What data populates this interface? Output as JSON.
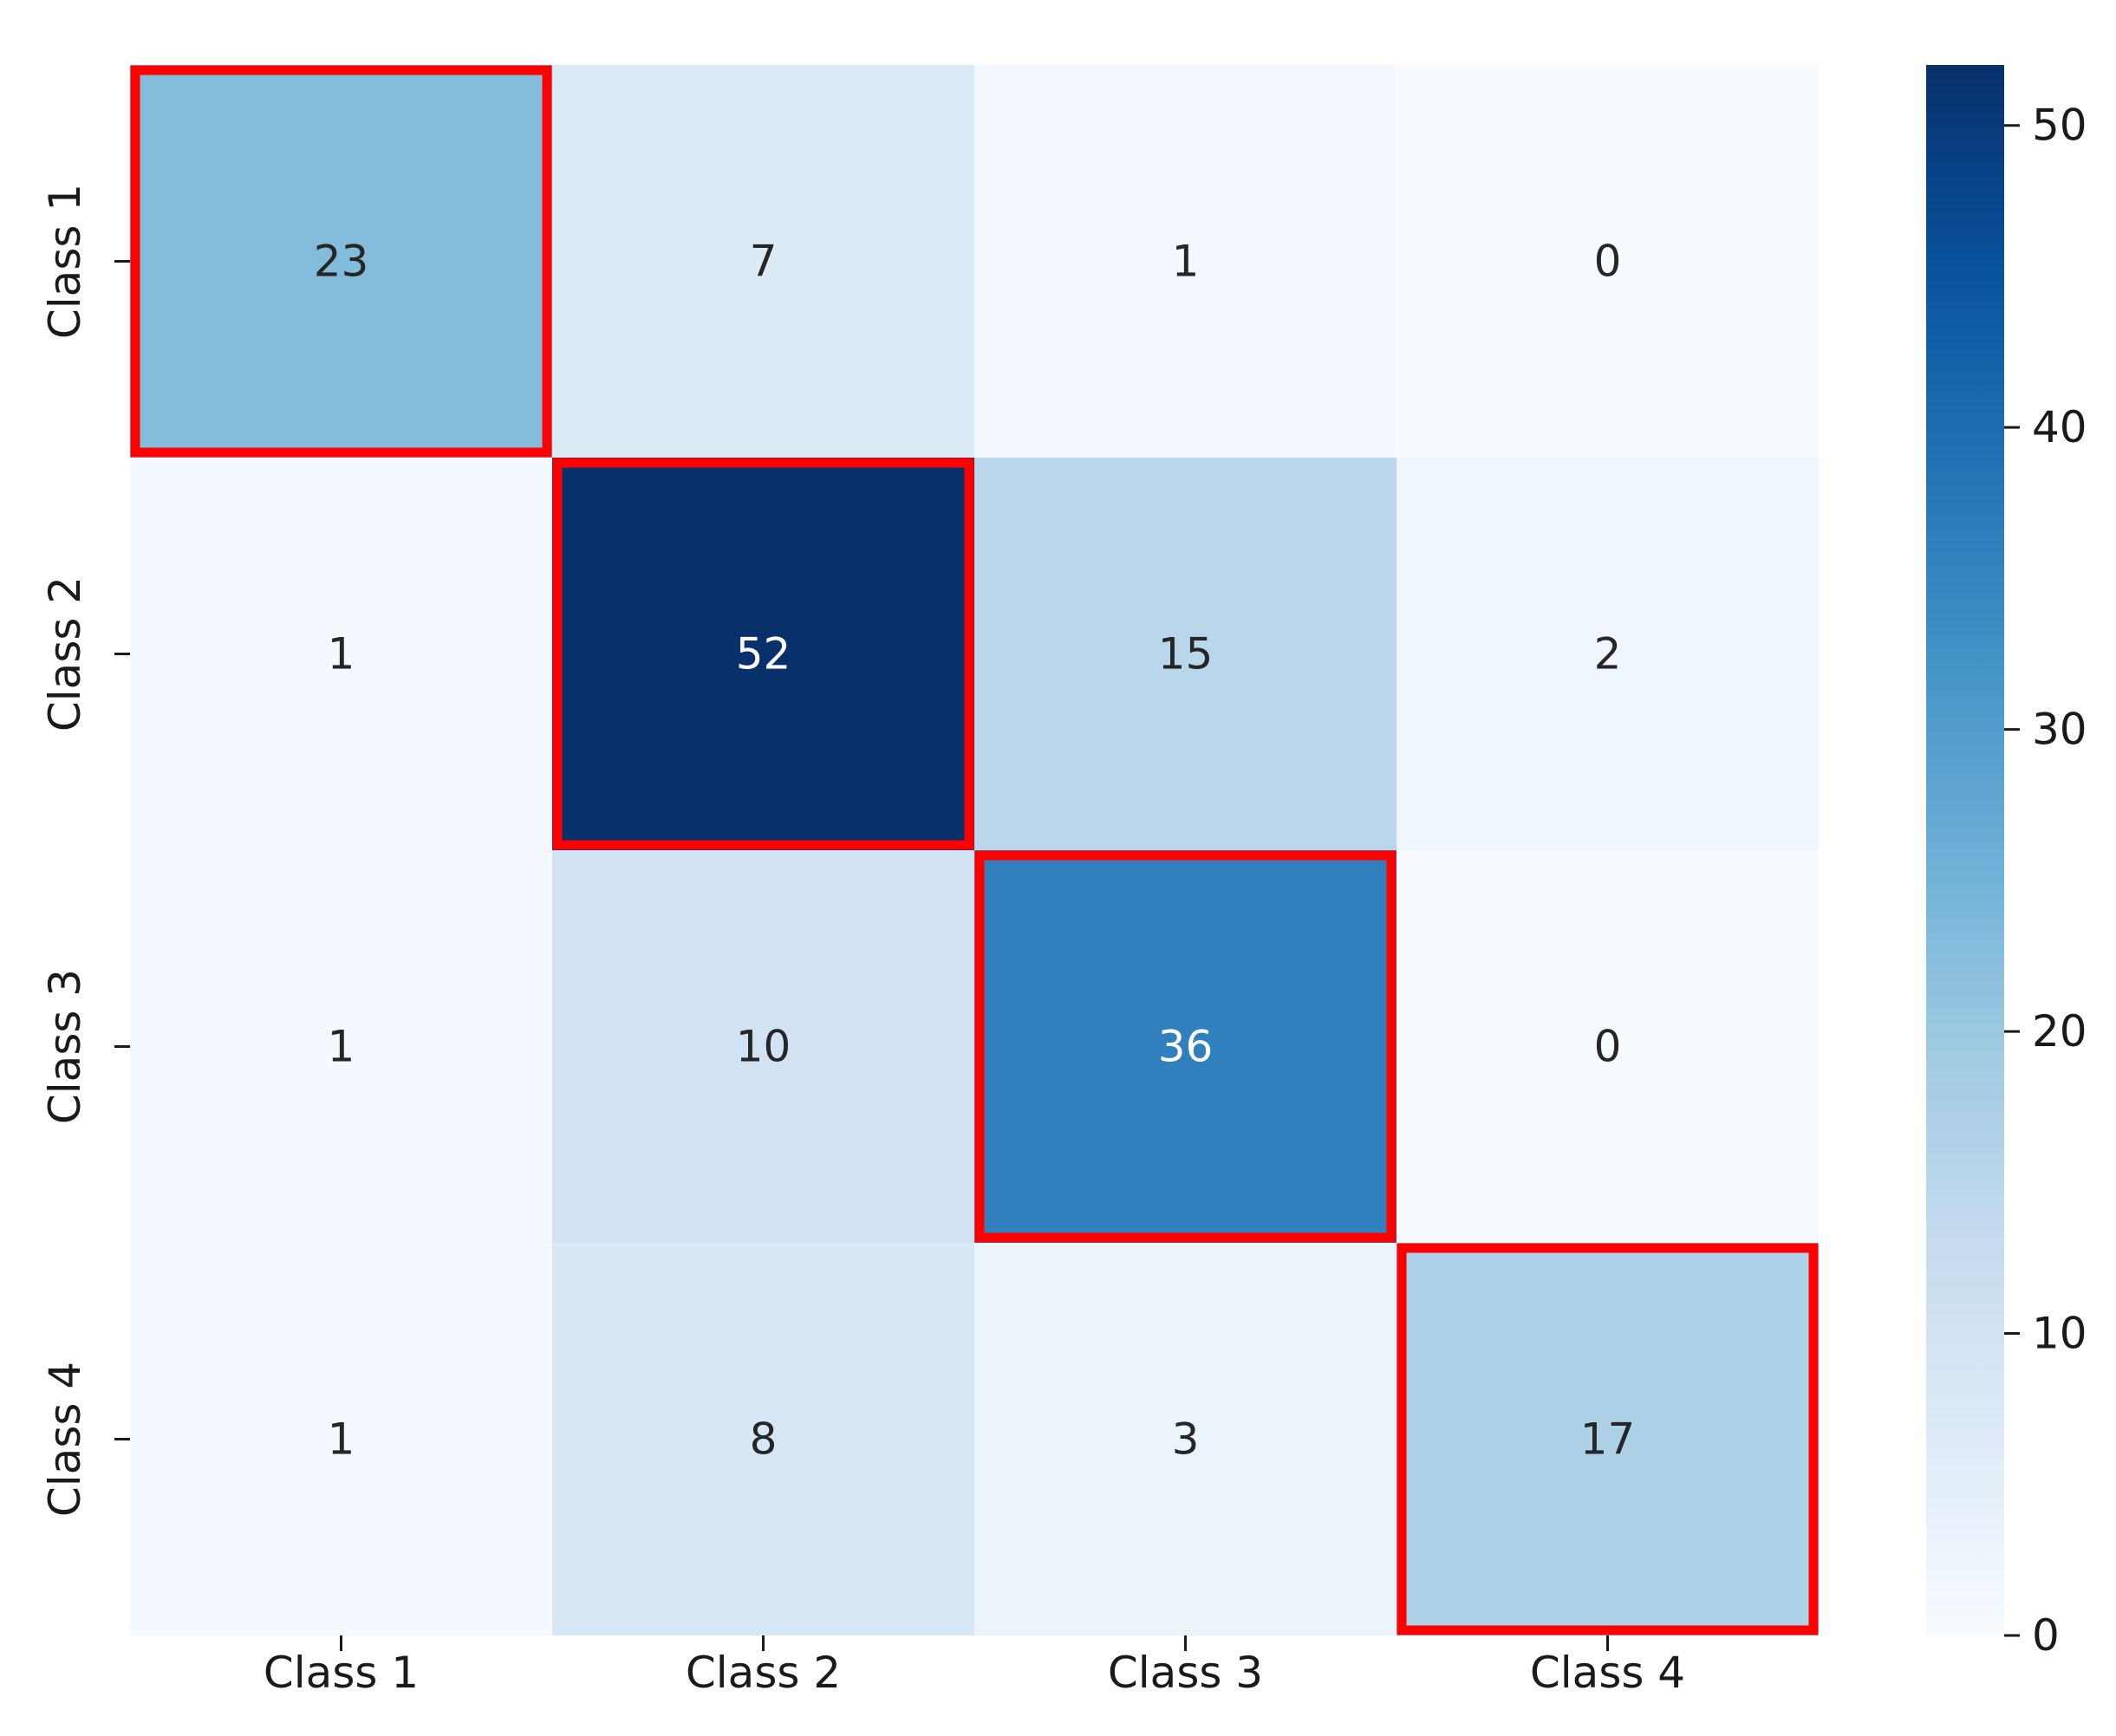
{
  "chart_data": {
    "type": "heatmap",
    "title": "",
    "xlabel": "",
    "ylabel": "",
    "x_categories": [
      "Class 1",
      "Class 2",
      "Class 3",
      "Class 4"
    ],
    "y_categories": [
      "Class 1",
      "Class 2",
      "Class 3",
      "Class 4"
    ],
    "values": [
      [
        23,
        7,
        1,
        0
      ],
      [
        1,
        52,
        15,
        2
      ],
      [
        1,
        10,
        36,
        0
      ],
      [
        1,
        8,
        3,
        17
      ]
    ],
    "highlighted_cells": [
      [
        0,
        0
      ],
      [
        1,
        1
      ],
      [
        2,
        2
      ],
      [
        3,
        3
      ]
    ],
    "highlight_color": "#ff0000",
    "colormap": "Blues",
    "colorbar": {
      "min": 0,
      "max": 52,
      "ticks": [
        0,
        10,
        20,
        30,
        40,
        50
      ]
    },
    "annotations_shown": true,
    "grid": false
  }
}
